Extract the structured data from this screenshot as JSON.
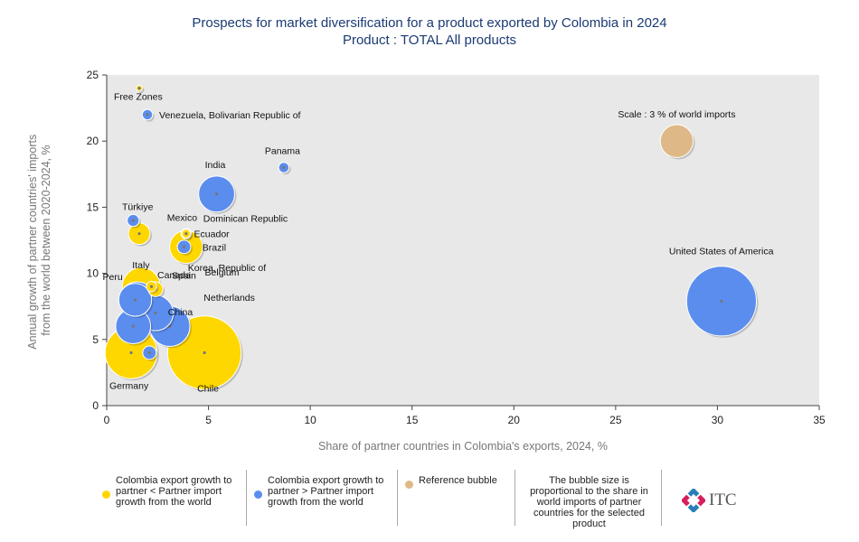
{
  "title": {
    "line1": "Prospects for market diversification for a product exported by Colombia in 2024",
    "line2": "Product : TOTAL All products"
  },
  "legend": {
    "yellow_label": "Colombia export growth to partner < Partner import growth from the world",
    "blue_label": "Colombia export growth to partner > Partner import growth from the world",
    "reference_label": "Reference bubble",
    "size_note": "The bubble size is proportional to the share in world imports of partner countries for the selected product",
    "logo_text": "ITC"
  },
  "colors": {
    "yellow": "#ffd700",
    "blue": "#5b8def",
    "reference": "#deb887",
    "plot_bg": "#e8e8e8",
    "title": "#1b3a73"
  },
  "chart_data": {
    "type": "scatter",
    "title": "Prospects for market diversification for a product exported by Colombia in 2024",
    "subtitle": "Product : TOTAL All products",
    "xlabel": "Share of partner countries in Colombia's exports, 2024, %",
    "ylabel_lines": [
      "Annual growth of partner countries' imports",
      "from the world between 2020-2024, %"
    ],
    "xlim": [
      0,
      35
    ],
    "ylim": [
      0,
      25
    ],
    "xticks": [
      "0",
      "5",
      "10",
      "15",
      "20",
      "25",
      "30",
      "35"
    ],
    "yticks": [
      "0",
      "5",
      "10",
      "15",
      "20",
      "25"
    ],
    "grid": false,
    "points": [
      {
        "name": "United States of America",
        "x": 30.2,
        "y": 7.9,
        "size": 13.5,
        "group": "blue"
      },
      {
        "name": "Germany",
        "x": 1.2,
        "y": 4.0,
        "size": 7.5,
        "group": "yellow"
      },
      {
        "name": "Chile",
        "x": 4.8,
        "y": 4.0,
        "size": 15.0,
        "group": "yellow"
      },
      {
        "name": "China",
        "x": 3.1,
        "y": 6.0,
        "size": 4.5,
        "group": "blue"
      },
      {
        "name": "Netherlands",
        "x": 1.3,
        "y": 6.0,
        "size": 3.4,
        "group": "blue"
      },
      {
        "name": "Spain",
        "x": 2.4,
        "y": 7.0,
        "size": 3.5,
        "group": "blue"
      },
      {
        "name": "Korea, Republic of",
        "x": 1.5,
        "y": 8.0,
        "size": 3.6,
        "group": "blue"
      },
      {
        "name": "Italy",
        "x": 1.7,
        "y": 9.0,
        "size": 4.0,
        "group": "yellow"
      },
      {
        "name": "Peru",
        "x": 2.2,
        "y": 9.0,
        "size": 0.3,
        "group": "yellow"
      },
      {
        "name": "Canada",
        "x": 2.4,
        "y": 8.8,
        "size": 0.6,
        "group": "yellow"
      },
      {
        "name": "Belgium",
        "x": 1.4,
        "y": 8.0,
        "size": 3.0,
        "group": "blue"
      },
      {
        "name": "Brazil",
        "x": 3.9,
        "y": 12.0,
        "size": 3.0,
        "group": "yellow"
      },
      {
        "name": "Ecuador",
        "x": 3.8,
        "y": 12.0,
        "size": 0.5,
        "group": "blue"
      },
      {
        "name": "Mexico",
        "x": 3.9,
        "y": 13.0,
        "size": 0.3,
        "group": "yellow"
      },
      {
        "name": "Dominican Republic",
        "x": 3.9,
        "y": 13.0,
        "size": 0.2,
        "group": "yellow"
      },
      {
        "name": "Türkiye",
        "x": 1.6,
        "y": 13.0,
        "size": 1.3,
        "group": "yellow"
      },
      {
        "name": "India",
        "x": 5.4,
        "y": 16.0,
        "size": 3.6,
        "group": "blue"
      },
      {
        "name": "Panama",
        "x": 8.7,
        "y": 18.0,
        "size": 0.3,
        "group": "blue"
      },
      {
        "name": "Venezuela, Bolivarian Republic of",
        "x": 2.0,
        "y": 22.0,
        "size": 0.3,
        "group": "blue"
      },
      {
        "name": "Free Zones",
        "x": 1.6,
        "y": 24.0,
        "size": 0.1,
        "group": "yellow"
      },
      {
        "name": "Türkiye (blue)",
        "x": 1.3,
        "y": 14.0,
        "size": 0.4,
        "group": "blue"
      },
      {
        "name": "Germany (blue)",
        "x": 2.1,
        "y": 4.0,
        "size": 0.5,
        "group": "blue"
      }
    ],
    "reference_bubble": {
      "label": "Scale : 3 % of world imports",
      "x": 28.0,
      "y": 20.0,
      "size": 3.0
    }
  }
}
